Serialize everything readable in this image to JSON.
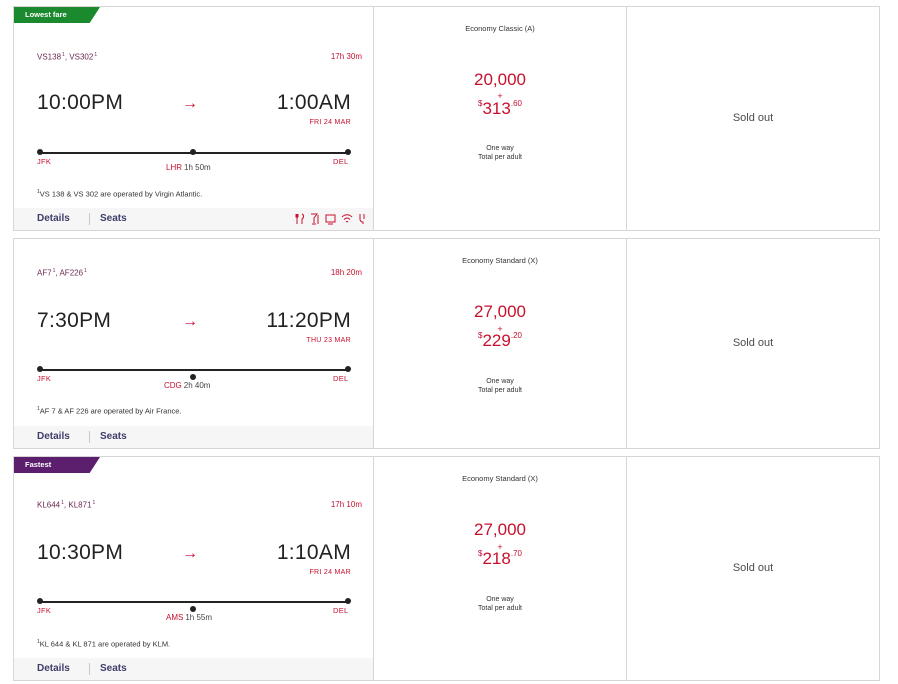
{
  "flights": [
    {
      "badge": "Lowest fare",
      "badge_color": "#1b8a2f",
      "flight_numbers": [
        {
          "no": "VS138",
          "sup": "1"
        },
        {
          "no": "VS302",
          "sup": "1"
        }
      ],
      "duration": "17h 30m",
      "depart_time": "10:00PM",
      "arrive_time": "1:00AM",
      "arrive_date": "FRI 24 MAR",
      "origin": "JFK",
      "destination": "DEL",
      "connection": {
        "code": "LHR",
        "layover": "1h 50m"
      },
      "note_sup": "1",
      "note": "VS 138 & VS 302 are operated by Virgin Atlantic.",
      "details_label": "Details",
      "seats_label": "Seats",
      "amenities": [
        "meal-icon",
        "drinks-icon",
        "entertainment-icon",
        "wifi-icon",
        "power-icon"
      ],
      "fare": {
        "cabin": "Economy Classic (A)",
        "miles": "20,000",
        "plus": "+",
        "currency": "$",
        "dollars": "313",
        "cents": ".60",
        "one_way": "One way",
        "per_adult": "Total per adult"
      },
      "sold_out": "Sold out"
    },
    {
      "badge": "",
      "flight_numbers": [
        {
          "no": "AF7",
          "sup": "1"
        },
        {
          "no": "AF226",
          "sup": "1"
        }
      ],
      "duration": "18h 20m",
      "depart_time": "7:30PM",
      "arrive_time": "11:20PM",
      "arrive_date": "THU 23 MAR",
      "origin": "JFK",
      "destination": "DEL",
      "connection": {
        "code": "CDG",
        "layover": "2h 40m"
      },
      "note_sup": "1",
      "note": "AF 7 & AF 226 are operated by Air France.",
      "details_label": "Details",
      "seats_label": "Seats",
      "fare": {
        "cabin": "Economy Standard (X)",
        "miles": "27,000",
        "plus": "+",
        "currency": "$",
        "dollars": "229",
        "cents": ".20",
        "one_way": "One way",
        "per_adult": "Total per adult"
      },
      "sold_out": "Sold out"
    },
    {
      "badge": "Fastest",
      "badge_color": "#5c1f6e",
      "flight_numbers": [
        {
          "no": "KL644",
          "sup": "1"
        },
        {
          "no": "KL871",
          "sup": "1"
        }
      ],
      "duration": "17h 10m",
      "depart_time": "10:30PM",
      "arrive_time": "1:10AM",
      "arrive_date": "FRI 24 MAR",
      "origin": "JFK",
      "destination": "DEL",
      "connection": {
        "code": "AMS",
        "layover": "1h 55m"
      },
      "note_sup": "1",
      "note": "KL 644 & KL 871 are operated by KLM.",
      "details_label": "Details",
      "seats_label": "Seats",
      "fare": {
        "cabin": "Economy Standard (X)",
        "miles": "27,000",
        "plus": "+",
        "currency": "$",
        "dollars": "218",
        "cents": ".70",
        "one_way": "One way",
        "per_adult": "Total per adult"
      },
      "sold_out": "Sold out"
    }
  ],
  "arrow_glyph": "→",
  "separator": ",",
  "colors": {
    "accent": "#c8102e",
    "link": "#3d3d6a",
    "border": "#d6d6d6"
  }
}
